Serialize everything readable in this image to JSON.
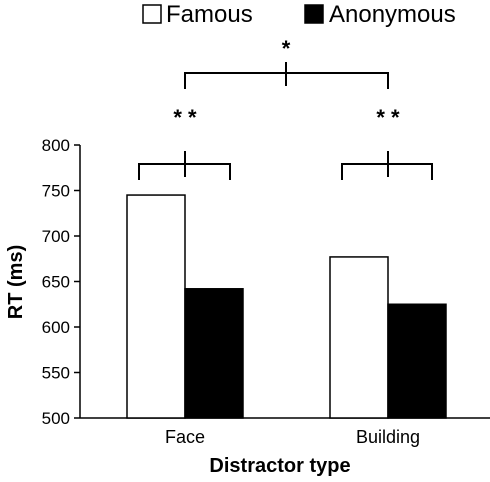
{
  "chart_data": {
    "type": "bar",
    "categories": [
      "Face",
      "Building"
    ],
    "series": [
      {
        "name": "Famous",
        "values": [
          745,
          677
        ],
        "color": "#ffffff"
      },
      {
        "name": "Anonymous",
        "values": [
          642,
          625
        ],
        "color": "#000000"
      }
    ],
    "title": "",
    "xlabel": "Distractor type",
    "ylabel": "RT (ms)",
    "ylim": [
      500,
      800
    ],
    "yticks": [
      "500",
      "550",
      "600",
      "650",
      "700",
      "750",
      "800"
    ],
    "grid": false,
    "legend": "top",
    "annotations": {
      "within_face": "* *",
      "within_building": "* *",
      "between_categories": "*"
    }
  }
}
